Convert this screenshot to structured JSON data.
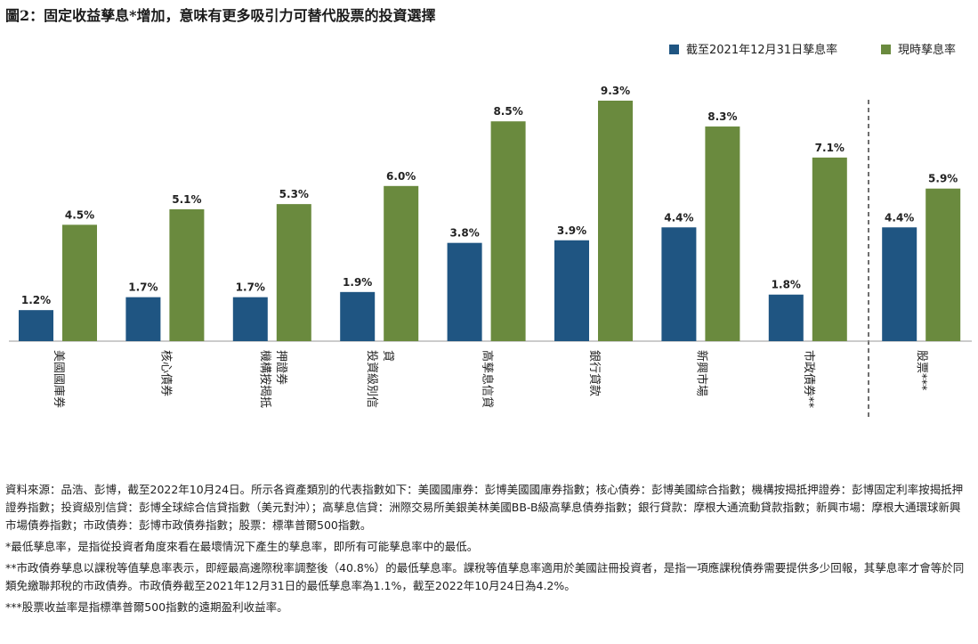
{
  "chart_data": {
    "type": "bar",
    "title": "圖2：固定收益孳息*增加，意味有更多吸引力可替代股票的投資選擇",
    "categories": [
      "美國國庫券",
      "核心債券",
      "機構按揭抵押證券",
      "投資級別信貸",
      "高孳息信貸",
      "銀行貸款",
      "新興市場",
      "市政債券**",
      "股票***"
    ],
    "series": [
      {
        "name": "截至2021年12月31日孳息率",
        "color": "#1f5582",
        "values": [
          1.2,
          1.7,
          1.7,
          1.9,
          3.8,
          3.9,
          4.4,
          1.8,
          4.4
        ],
        "value_labels": [
          "1.2%",
          "1.7%",
          "1.7%",
          "1.9%",
          "3.8%",
          "3.9%",
          "4.4%",
          "1.8%",
          "4.4%"
        ]
      },
      {
        "name": "現時孳息率",
        "color": "#6a8a3e",
        "values": [
          4.5,
          5.1,
          5.3,
          6.0,
          8.5,
          9.3,
          8.3,
          7.1,
          5.9
        ],
        "value_labels": [
          "4.5%",
          "5.1%",
          "5.3%",
          "6.0%",
          "8.5%",
          "9.3%",
          "8.3%",
          "7.1%",
          "5.9%"
        ]
      }
    ],
    "notes": [
      "資料來源：品浩、彭博，截至2022年10月24日。所示各資產類別的代表指數如下：美國國庫券：彭博美國國庫券指數；核心債券：彭博美國綜合指數；機構按揭抵押證券：彭博固定利率按揭抵押證券指數；投資級別信貸：彭博全球綜合信貸指數（美元對沖）；高孳息信貸：洲際交易所美銀美林美國BB-B級高孳息債券指數；銀行貸款：摩根大通流動貸款指數；新興市場：摩根大通環球新興市場債券指數；市政債券：彭博市政債券指數；股票：標準普爾500指數。",
      "*最低孳息率，是指從投資者角度來看在最壞情況下產生的孳息率，即所有可能孳息率中的最低。",
      "**市政債券孳息以課稅等值孳息率表示，即經最高邊際稅率調整後（40.8%）的最低孳息率。課稅等值孳息率適用於美國註冊投資者，是指一項應課稅債券需要提供多少回報，其孳息率才會等於同類免繳聯邦稅的市政債券。市政債券截至2021年12月31日的最低孳息率為1.1%，截至2022年10月24日為4.2%。",
      "***股票收益率是指標準普爾500指數的遠期盈利收益率。"
    ]
  }
}
